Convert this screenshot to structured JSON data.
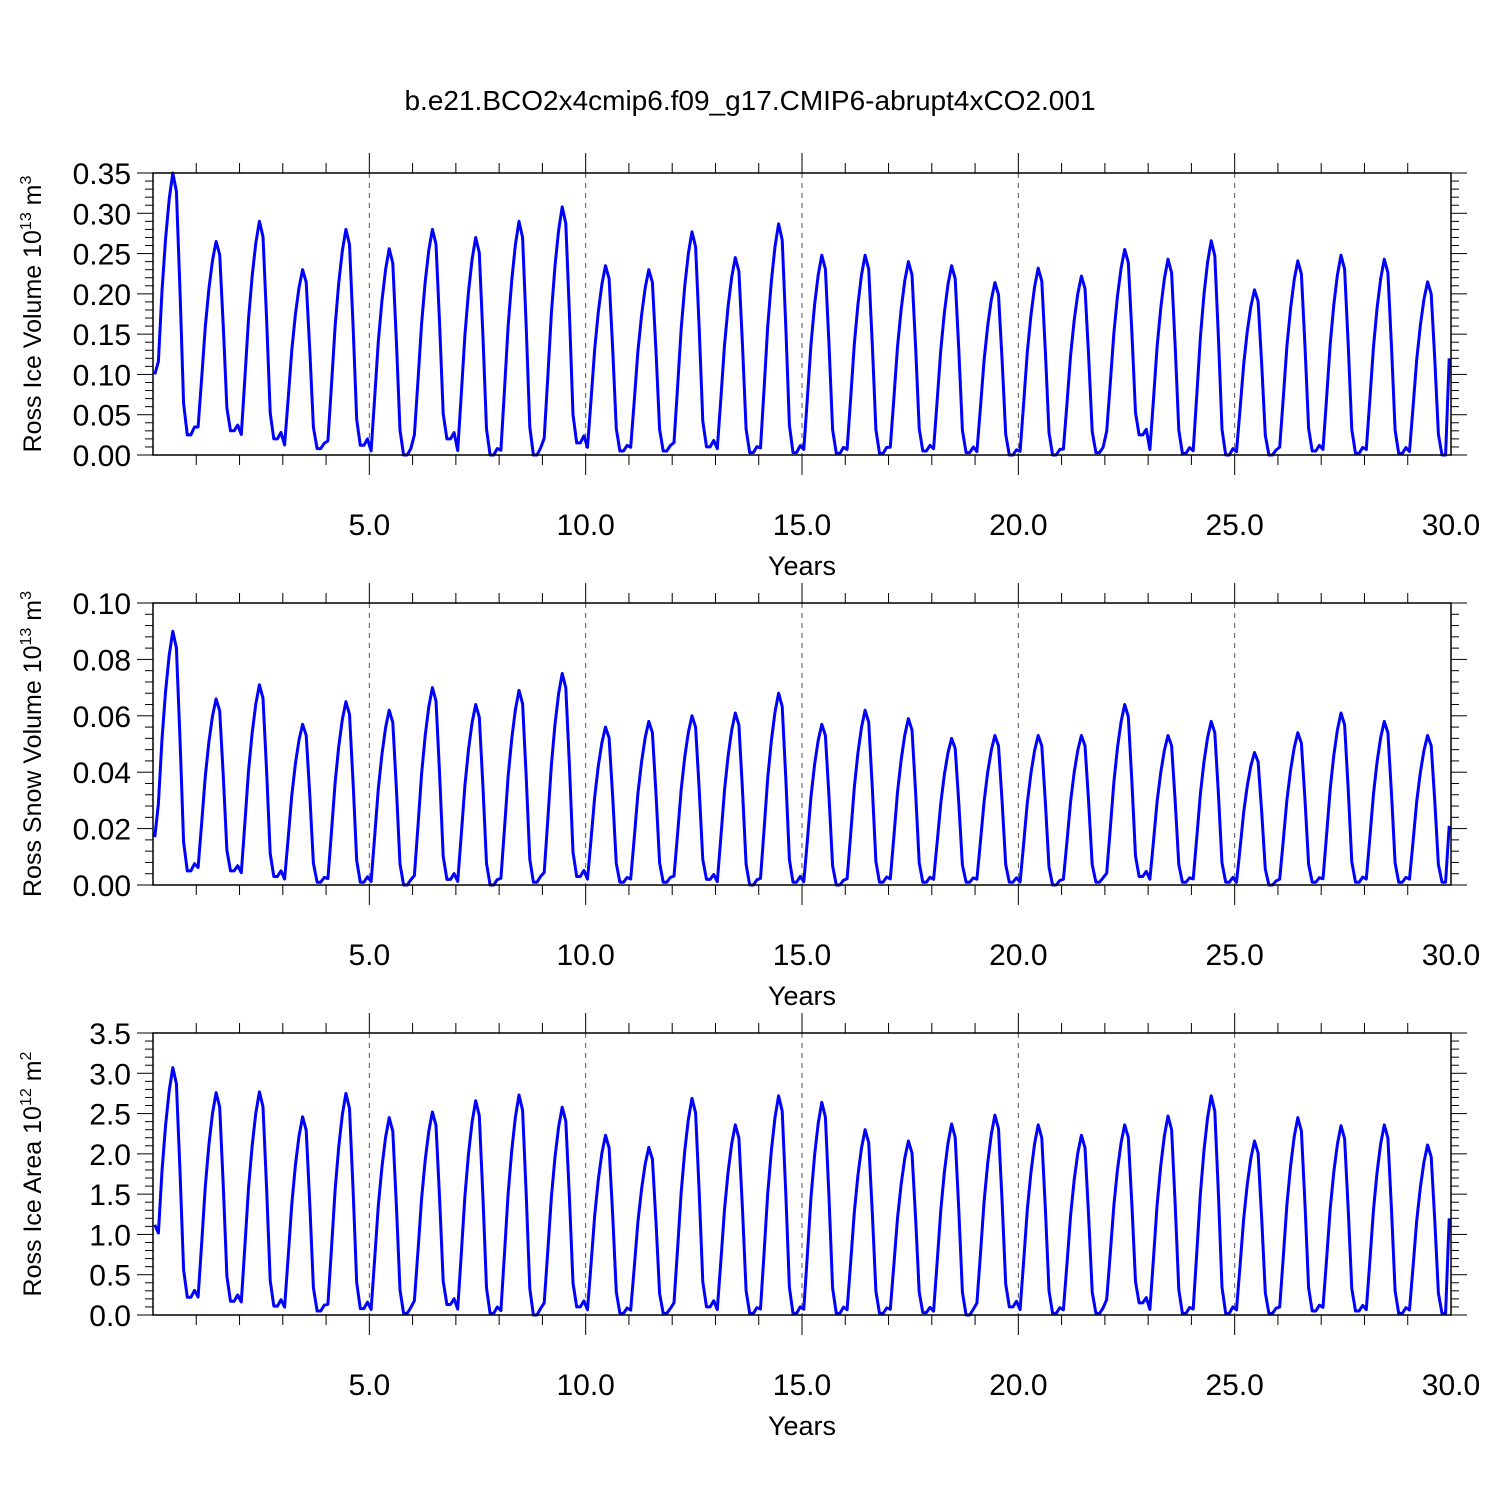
{
  "title": "b.e21.BCO2x4cmip6.f09_g17.CMIP6-abrupt4xCO2.001",
  "colors": {
    "series": "#0000ff",
    "axis": "#000000",
    "refline": "#555555"
  },
  "chart_data": [
    {
      "type": "line",
      "ylabel": {
        "text": "Ross Ice Volume 10",
        "exp1": "13",
        "mid": " m",
        "exp2": "3"
      },
      "xlabel": "Years",
      "xlim": [
        0,
        30
      ],
      "ylim": [
        0,
        0.35
      ],
      "xticks": [
        5,
        10,
        15,
        20,
        25,
        30
      ],
      "xticklabels": [
        "5.0",
        "10.0",
        "15.0",
        "20.0",
        "25.0",
        "30.0"
      ],
      "yticks": [
        0,
        0.05,
        0.1,
        0.15,
        0.2,
        0.25,
        0.3,
        0.35
      ],
      "yticklabels": [
        "0.00",
        "0.05",
        "0.10",
        "0.15",
        "0.20",
        "0.25",
        "0.30",
        "0.35"
      ],
      "reference_lines_x": [
        5,
        10,
        15,
        20,
        25
      ],
      "start_value": 0.1,
      "end_value": 0.12,
      "annual_peaks": [
        0.35,
        0.265,
        0.29,
        0.23,
        0.28,
        0.256,
        0.28,
        0.27,
        0.29,
        0.308,
        0.235,
        0.23,
        0.277,
        0.245,
        0.287,
        0.248,
        0.248,
        0.24,
        0.235,
        0.214,
        0.232,
        0.222,
        0.255,
        0.243,
        0.266,
        0.205,
        0.241,
        0.248,
        0.243,
        0.215
      ],
      "annual_minima": [
        0.025,
        0.03,
        0.02,
        0.008,
        0.012,
        0.0,
        0.02,
        0.0,
        0.0,
        0.015,
        0.005,
        0.005,
        0.01,
        0.003,
        0.003,
        0.002,
        0.002,
        0.005,
        0.003,
        0.0,
        0.0,
        0.003,
        0.025,
        0.002,
        0.0,
        0.0,
        0.005,
        0.002,
        0.002,
        0.0
      ]
    },
    {
      "type": "line",
      "ylabel": {
        "text": "Ross Snow Volume 10",
        "exp1": "13",
        "mid": " m",
        "exp2": "3"
      },
      "xlabel": "Years",
      "xlim": [
        0,
        30
      ],
      "ylim": [
        0,
        0.1
      ],
      "xticks": [
        5,
        10,
        15,
        20,
        25,
        30
      ],
      "xticklabels": [
        "5.0",
        "10.0",
        "15.0",
        "20.0",
        "25.0",
        "30.0"
      ],
      "yticks": [
        0,
        0.02,
        0.04,
        0.06,
        0.08,
        0.1
      ],
      "yticklabels": [
        "0.00",
        "0.02",
        "0.04",
        "0.06",
        "0.08",
        "0.10"
      ],
      "reference_lines_x": [
        5,
        10,
        15,
        20,
        25
      ],
      "start_value": 0.017,
      "end_value": 0.021,
      "annual_peaks": [
        0.09,
        0.066,
        0.071,
        0.057,
        0.065,
        0.062,
        0.07,
        0.064,
        0.069,
        0.075,
        0.056,
        0.058,
        0.06,
        0.061,
        0.068,
        0.057,
        0.062,
        0.059,
        0.052,
        0.053,
        0.053,
        0.053,
        0.064,
        0.053,
        0.058,
        0.047,
        0.054,
        0.061,
        0.058,
        0.053
      ],
      "annual_minima": [
        0.005,
        0.005,
        0.003,
        0.001,
        0.001,
        0.0,
        0.002,
        0.0,
        0.001,
        0.003,
        0.001,
        0.001,
        0.002,
        0.0,
        0.001,
        0.0,
        0.001,
        0.001,
        0.001,
        0.001,
        0.0,
        0.001,
        0.003,
        0.001,
        0.001,
        0.0,
        0.001,
        0.001,
        0.001,
        0.001
      ]
    },
    {
      "type": "line",
      "ylabel": {
        "text": "Ross Ice Area 10",
        "exp1": "12",
        "mid": " m",
        "exp2": "2"
      },
      "xlabel": "Years",
      "xlim": [
        0,
        30
      ],
      "ylim": [
        0,
        3.5
      ],
      "xticks": [
        5,
        10,
        15,
        20,
        25,
        30
      ],
      "xticklabels": [
        "5.0",
        "10.0",
        "15.0",
        "20.0",
        "25.0",
        "30.0"
      ],
      "yticks": [
        0,
        0.5,
        1.0,
        1.5,
        2.0,
        2.5,
        3.0,
        3.5
      ],
      "yticklabels": [
        "0.0",
        "0.5",
        "1.0",
        "1.5",
        "2.0",
        "2.5",
        "3.0",
        "3.5"
      ],
      "reference_lines_x": [
        5,
        10,
        15,
        20,
        25
      ],
      "start_value": 1.12,
      "end_value": 1.2,
      "annual_peaks": [
        3.07,
        2.76,
        2.77,
        2.46,
        2.75,
        2.45,
        2.52,
        2.66,
        2.73,
        2.58,
        2.23,
        2.08,
        2.69,
        2.36,
        2.72,
        2.64,
        2.3,
        2.16,
        2.37,
        2.48,
        2.36,
        2.23,
        2.36,
        2.47,
        2.72,
        2.16,
        2.45,
        2.35,
        2.36,
        2.11
      ],
      "annual_minima": [
        0.22,
        0.17,
        0.11,
        0.05,
        0.08,
        0.02,
        0.13,
        0.02,
        0.0,
        0.1,
        0.02,
        0.02,
        0.1,
        0.02,
        0.02,
        0.02,
        0.02,
        0.03,
        0.0,
        0.1,
        0.02,
        0.02,
        0.15,
        0.02,
        0.02,
        0.02,
        0.05,
        0.05,
        0.02,
        0.02
      ]
    }
  ]
}
